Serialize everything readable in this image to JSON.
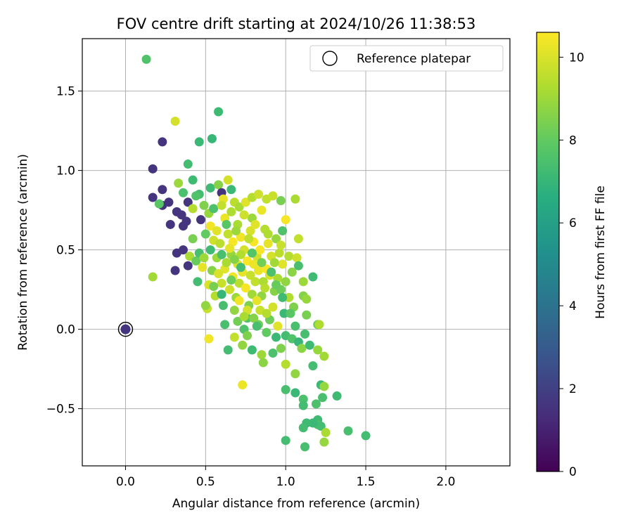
{
  "chart_data": {
    "type": "scatter",
    "title": "FOV centre drift starting at 2024/10/26 11:38:53",
    "xlabel": "Angular distance from reference (arcmin)",
    "ylabel": "Rotation from reference (arcmin)",
    "xlim": [
      -0.27,
      2.4
    ],
    "ylim": [
      -0.86,
      1.83
    ],
    "xticks": [
      0.0,
      0.5,
      1.0,
      1.5,
      2.0
    ],
    "xtick_labels": [
      "0.0",
      "0.5",
      "1.0",
      "1.5",
      "2.0"
    ],
    "yticks": [
      -0.5,
      0.0,
      0.5,
      1.0,
      1.5
    ],
    "ytick_labels": [
      "−0.5",
      "0.0",
      "0.5",
      "1.0",
      "1.5"
    ],
    "grid": true,
    "legend": {
      "placement": "top-right",
      "entries": [
        "Reference platepar"
      ]
    },
    "colorbar": {
      "label": "Hours from first FF file",
      "range": [
        0,
        10.6
      ],
      "ticks": [
        0,
        2,
        4,
        6,
        8,
        10
      ],
      "tick_labels": [
        "0",
        "2",
        "4",
        "6",
        "8",
        "10"
      ],
      "colormap": "viridis"
    },
    "reference_point": {
      "x": 0.0,
      "y": 0.0,
      "hours": 1.6
    },
    "points": [
      {
        "x": 0.13,
        "y": 1.7,
        "h": 7.6
      },
      {
        "x": 0.58,
        "y": 1.37,
        "h": 7.2
      },
      {
        "x": 0.54,
        "y": 1.2,
        "h": 7.0
      },
      {
        "x": 0.46,
        "y": 1.18,
        "h": 7.1
      },
      {
        "x": 0.31,
        "y": 1.31,
        "h": 9.9
      },
      {
        "x": 0.23,
        "y": 1.18,
        "h": 1.6
      },
      {
        "x": 0.17,
        "y": 1.01,
        "h": 1.6
      },
      {
        "x": 0.39,
        "y": 1.04,
        "h": 7.3
      },
      {
        "x": 0.17,
        "y": 0.83,
        "h": 1.6
      },
      {
        "x": 0.23,
        "y": 0.88,
        "h": 1.6
      },
      {
        "x": 0.23,
        "y": 0.78,
        "h": 1.6
      },
      {
        "x": 0.27,
        "y": 0.8,
        "h": 1.6
      },
      {
        "x": 0.21,
        "y": 0.79,
        "h": 7.8
      },
      {
        "x": 0.33,
        "y": 0.92,
        "h": 9.0
      },
      {
        "x": 0.42,
        "y": 0.94,
        "h": 7.2
      },
      {
        "x": 0.36,
        "y": 0.86,
        "h": 7.5
      },
      {
        "x": 0.46,
        "y": 0.85,
        "h": 7.3
      },
      {
        "x": 0.53,
        "y": 0.89,
        "h": 7.2
      },
      {
        "x": 0.58,
        "y": 0.91,
        "h": 8.6
      },
      {
        "x": 0.32,
        "y": 0.74,
        "h": 1.6
      },
      {
        "x": 0.35,
        "y": 0.72,
        "h": 1.6
      },
      {
        "x": 0.39,
        "y": 0.8,
        "h": 1.6
      },
      {
        "x": 0.38,
        "y": 0.68,
        "h": 1.6
      },
      {
        "x": 0.36,
        "y": 0.65,
        "h": 1.6
      },
      {
        "x": 0.28,
        "y": 0.66,
        "h": 1.6
      },
      {
        "x": 0.42,
        "y": 0.76,
        "h": 9.4
      },
      {
        "x": 0.44,
        "y": 0.84,
        "h": 7.6
      },
      {
        "x": 0.49,
        "y": 0.78,
        "h": 8.5
      },
      {
        "x": 0.47,
        "y": 0.69,
        "h": 1.6
      },
      {
        "x": 0.52,
        "y": 0.73,
        "h": 8.9
      },
      {
        "x": 0.6,
        "y": 0.86,
        "h": 1.6
      },
      {
        "x": 0.66,
        "y": 0.88,
        "h": 7.1
      },
      {
        "x": 0.64,
        "y": 0.94,
        "h": 9.9
      },
      {
        "x": 0.61,
        "y": 0.82,
        "h": 10.2
      },
      {
        "x": 0.68,
        "y": 0.8,
        "h": 9.5
      },
      {
        "x": 0.71,
        "y": 0.77,
        "h": 9.2
      },
      {
        "x": 0.75,
        "y": 0.8,
        "h": 10.1
      },
      {
        "x": 0.79,
        "y": 0.83,
        "h": 9.4
      },
      {
        "x": 0.83,
        "y": 0.85,
        "h": 9.8
      },
      {
        "x": 0.88,
        "y": 0.82,
        "h": 9.6
      },
      {
        "x": 0.92,
        "y": 0.84,
        "h": 9.7
      },
      {
        "x": 0.85,
        "y": 0.75,
        "h": 10.3
      },
      {
        "x": 0.79,
        "y": 0.7,
        "h": 9.0
      },
      {
        "x": 0.97,
        "y": 0.81,
        "h": 8.4
      },
      {
        "x": 1.06,
        "y": 0.82,
        "h": 9.2
      },
      {
        "x": 1.0,
        "y": 0.69,
        "h": 10.5
      },
      {
        "x": 0.98,
        "y": 0.62,
        "h": 7.6
      },
      {
        "x": 1.08,
        "y": 0.57,
        "h": 9.6
      },
      {
        "x": 0.32,
        "y": 0.48,
        "h": 1.6
      },
      {
        "x": 0.36,
        "y": 0.5,
        "h": 1.6
      },
      {
        "x": 0.31,
        "y": 0.37,
        "h": 1.6
      },
      {
        "x": 0.42,
        "y": 0.57,
        "h": 8.4
      },
      {
        "x": 0.4,
        "y": 0.46,
        "h": 9.2
      },
      {
        "x": 0.39,
        "y": 0.4,
        "h": 1.6
      },
      {
        "x": 0.44,
        "y": 0.43,
        "h": 8.1
      },
      {
        "x": 0.46,
        "y": 0.48,
        "h": 7.4
      },
      {
        "x": 0.48,
        "y": 0.39,
        "h": 10.2
      },
      {
        "x": 0.45,
        "y": 0.3,
        "h": 7.3
      },
      {
        "x": 0.17,
        "y": 0.33,
        "h": 9.1
      },
      {
        "x": 0.53,
        "y": 0.65,
        "h": 10.4
      },
      {
        "x": 0.55,
        "y": 0.56,
        "h": 9.8
      },
      {
        "x": 0.57,
        "y": 0.45,
        "h": 9.0
      },
      {
        "x": 0.54,
        "y": 0.37,
        "h": 8.6
      },
      {
        "x": 0.52,
        "y": 0.28,
        "h": 10.0
      },
      {
        "x": 0.56,
        "y": 0.21,
        "h": 9.4
      },
      {
        "x": 0.62,
        "y": 0.7,
        "h": 10.3
      },
      {
        "x": 0.64,
        "y": 0.6,
        "h": 9.6
      },
      {
        "x": 0.67,
        "y": 0.55,
        "h": 10.5
      },
      {
        "x": 0.66,
        "y": 0.47,
        "h": 8.9
      },
      {
        "x": 0.62,
        "y": 0.38,
        "h": 10.1
      },
      {
        "x": 0.6,
        "y": 0.29,
        "h": 9.7
      },
      {
        "x": 0.61,
        "y": 0.15,
        "h": 7.4
      },
      {
        "x": 0.7,
        "y": 0.66,
        "h": 9.2
      },
      {
        "x": 0.72,
        "y": 0.58,
        "h": 10.4
      },
      {
        "x": 0.74,
        "y": 0.5,
        "h": 9.9
      },
      {
        "x": 0.76,
        "y": 0.43,
        "h": 10.5
      },
      {
        "x": 0.73,
        "y": 0.36,
        "h": 10.2
      },
      {
        "x": 0.71,
        "y": 0.29,
        "h": 9.5
      },
      {
        "x": 0.69,
        "y": 0.2,
        "h": 9.0
      },
      {
        "x": 0.68,
        "y": 0.12,
        "h": 8.8
      },
      {
        "x": 0.78,
        "y": 0.62,
        "h": 10.0
      },
      {
        "x": 0.8,
        "y": 0.55,
        "h": 10.5
      },
      {
        "x": 0.82,
        "y": 0.46,
        "h": 9.8
      },
      {
        "x": 0.83,
        "y": 0.37,
        "h": 10.3
      },
      {
        "x": 0.81,
        "y": 0.3,
        "h": 9.6
      },
      {
        "x": 0.79,
        "y": 0.22,
        "h": 9.1
      },
      {
        "x": 0.77,
        "y": 0.15,
        "h": 8.5
      },
      {
        "x": 0.76,
        "y": 0.07,
        "h": 7.6
      },
      {
        "x": 0.87,
        "y": 0.63,
        "h": 9.4
      },
      {
        "x": 0.89,
        "y": 0.54,
        "h": 10.2
      },
      {
        "x": 0.91,
        "y": 0.46,
        "h": 9.9
      },
      {
        "x": 0.88,
        "y": 0.38,
        "h": 10.5
      },
      {
        "x": 0.86,
        "y": 0.3,
        "h": 9.3
      },
      {
        "x": 0.85,
        "y": 0.21,
        "h": 8.8
      },
      {
        "x": 0.84,
        "y": 0.12,
        "h": 9.7
      },
      {
        "x": 0.83,
        "y": 0.03,
        "h": 8.3
      },
      {
        "x": 0.94,
        "y": 0.57,
        "h": 8.9
      },
      {
        "x": 0.96,
        "y": 0.48,
        "h": 9.5
      },
      {
        "x": 0.98,
        "y": 0.41,
        "h": 10.1
      },
      {
        "x": 0.95,
        "y": 0.32,
        "h": 9.2
      },
      {
        "x": 0.93,
        "y": 0.24,
        "h": 8.6
      },
      {
        "x": 0.92,
        "y": 0.14,
        "h": 9.9
      },
      {
        "x": 0.9,
        "y": 0.06,
        "h": 8.2
      },
      {
        "x": 1.02,
        "y": 0.46,
        "h": 9.4
      },
      {
        "x": 1.04,
        "y": 0.36,
        "h": 8.7
      },
      {
        "x": 1.07,
        "y": 0.45,
        "h": 9.8
      },
      {
        "x": 1.08,
        "y": 0.4,
        "h": 7.4
      },
      {
        "x": 1.11,
        "y": 0.3,
        "h": 9.0
      },
      {
        "x": 1.17,
        "y": 0.33,
        "h": 7.2
      },
      {
        "x": 1.11,
        "y": 0.21,
        "h": 8.6
      },
      {
        "x": 1.13,
        "y": 0.19,
        "h": 8.9
      },
      {
        "x": 1.02,
        "y": 0.2,
        "h": 9.3
      },
      {
        "x": 1.05,
        "y": 0.14,
        "h": 8.5
      },
      {
        "x": 0.99,
        "y": 0.1,
        "h": 7.1
      },
      {
        "x": 1.13,
        "y": 0.09,
        "h": 8.4
      },
      {
        "x": 1.2,
        "y": 0.03,
        "h": 8.1
      },
      {
        "x": 1.21,
        "y": 0.03,
        "h": 9.3
      },
      {
        "x": 0.95,
        "y": 0.02,
        "h": 10.1
      },
      {
        "x": 1.0,
        "y": -0.04,
        "h": 7.3
      },
      {
        "x": 1.04,
        "y": -0.06,
        "h": 7.6
      },
      {
        "x": 1.08,
        "y": -0.08,
        "h": 7.0
      },
      {
        "x": 1.12,
        "y": -0.03,
        "h": 7.4
      },
      {
        "x": 1.1,
        "y": -0.12,
        "h": 8.7
      },
      {
        "x": 1.15,
        "y": -0.1,
        "h": 7.2
      },
      {
        "x": 1.2,
        "y": -0.13,
        "h": 8.9
      },
      {
        "x": 1.24,
        "y": -0.17,
        "h": 9.1
      },
      {
        "x": 1.17,
        "y": -0.23,
        "h": 7.3
      },
      {
        "x": 1.0,
        "y": -0.22,
        "h": 9.4
      },
      {
        "x": 1.06,
        "y": -0.28,
        "h": 8.8
      },
      {
        "x": 0.97,
        "y": -0.12,
        "h": 8.5
      },
      {
        "x": 0.92,
        "y": -0.15,
        "h": 7.5
      },
      {
        "x": 0.85,
        "y": -0.16,
        "h": 9.0
      },
      {
        "x": 0.86,
        "y": -0.21,
        "h": 8.7
      },
      {
        "x": 0.79,
        "y": -0.13,
        "h": 7.2
      },
      {
        "x": 0.73,
        "y": -0.1,
        "h": 8.8
      },
      {
        "x": 0.68,
        "y": -0.05,
        "h": 9.6
      },
      {
        "x": 0.64,
        "y": -0.13,
        "h": 7.3
      },
      {
        "x": 0.52,
        "y": -0.06,
        "h": 10.4
      },
      {
        "x": 0.51,
        "y": 0.13,
        "h": 9.7
      },
      {
        "x": 0.5,
        "y": 0.15,
        "h": 8.8
      },
      {
        "x": 0.62,
        "y": 0.03,
        "h": 7.4
      },
      {
        "x": 0.7,
        "y": 0.05,
        "h": 8.3
      },
      {
        "x": 0.74,
        "y": 0.0,
        "h": 7.6
      },
      {
        "x": 1.22,
        "y": -0.35,
        "h": 7.1
      },
      {
        "x": 1.24,
        "y": -0.36,
        "h": 8.9
      },
      {
        "x": 1.32,
        "y": -0.42,
        "h": 7.2
      },
      {
        "x": 1.23,
        "y": -0.43,
        "h": 7.4
      },
      {
        "x": 1.11,
        "y": -0.44,
        "h": 7.5
      },
      {
        "x": 1.11,
        "y": -0.48,
        "h": 7.3
      },
      {
        "x": 1.06,
        "y": -0.4,
        "h": 7.1
      },
      {
        "x": 1.0,
        "y": -0.38,
        "h": 7.4
      },
      {
        "x": 1.19,
        "y": -0.47,
        "h": 7.5
      },
      {
        "x": 1.2,
        "y": -0.57,
        "h": 7.2
      },
      {
        "x": 1.2,
        "y": -0.6,
        "h": 7.4
      },
      {
        "x": 1.22,
        "y": -0.61,
        "h": 7.3
      },
      {
        "x": 1.17,
        "y": -0.59,
        "h": 7.1
      },
      {
        "x": 1.13,
        "y": -0.59,
        "h": 7.2
      },
      {
        "x": 1.11,
        "y": -0.62,
        "h": 7.3
      },
      {
        "x": 1.25,
        "y": -0.65,
        "h": 9.2
      },
      {
        "x": 1.24,
        "y": -0.71,
        "h": 8.9
      },
      {
        "x": 1.39,
        "y": -0.64,
        "h": 7.4
      },
      {
        "x": 1.5,
        "y": -0.67,
        "h": 7.3
      },
      {
        "x": 1.0,
        "y": -0.7,
        "h": 7.3
      },
      {
        "x": 1.12,
        "y": -0.74,
        "h": 7.4
      },
      {
        "x": 0.73,
        "y": -0.35,
        "h": 10.3
      },
      {
        "x": 0.66,
        "y": 0.74,
        "h": 9.3
      },
      {
        "x": 0.74,
        "y": 0.72,
        "h": 9.8
      },
      {
        "x": 0.67,
        "y": 0.33,
        "h": 10.4
      },
      {
        "x": 0.7,
        "y": 0.41,
        "h": 10.0
      },
      {
        "x": 0.75,
        "y": 0.26,
        "h": 10.5
      },
      {
        "x": 0.78,
        "y": 0.34,
        "h": 9.7
      },
      {
        "x": 0.8,
        "y": 0.41,
        "h": 10.3
      },
      {
        "x": 0.72,
        "y": 0.47,
        "h": 9.4
      },
      {
        "x": 0.65,
        "y": 0.51,
        "h": 10.2
      },
      {
        "x": 0.59,
        "y": 0.54,
        "h": 9.5
      },
      {
        "x": 0.57,
        "y": 0.62,
        "h": 10.1
      },
      {
        "x": 0.63,
        "y": 0.42,
        "h": 9.2
      },
      {
        "x": 0.58,
        "y": 0.35,
        "h": 10.0
      },
      {
        "x": 0.65,
        "y": 0.25,
        "h": 9.8
      },
      {
        "x": 0.71,
        "y": 0.18,
        "h": 10.4
      },
      {
        "x": 0.76,
        "y": 0.12,
        "h": 9.9
      },
      {
        "x": 0.82,
        "y": 0.18,
        "h": 10.2
      },
      {
        "x": 0.87,
        "y": 0.26,
        "h": 9.5
      },
      {
        "x": 0.9,
        "y": 0.34,
        "h": 10.0
      },
      {
        "x": 0.93,
        "y": 0.42,
        "h": 9.1
      },
      {
        "x": 0.84,
        "y": 0.5,
        "h": 10.5
      },
      {
        "x": 0.77,
        "y": 0.57,
        "h": 9.6
      },
      {
        "x": 0.69,
        "y": 0.62,
        "h": 9.0
      },
      {
        "x": 0.81,
        "y": 0.66,
        "h": 10.1
      },
      {
        "x": 0.89,
        "y": 0.6,
        "h": 9.3
      },
      {
        "x": 0.97,
        "y": 0.53,
        "h": 9.7
      },
      {
        "x": 1.0,
        "y": 0.3,
        "h": 8.8
      },
      {
        "x": 0.97,
        "y": 0.25,
        "h": 8.2
      },
      {
        "x": 0.88,
        "y": 0.1,
        "h": 9.4
      },
      {
        "x": 0.8,
        "y": 0.07,
        "h": 8.6
      },
      {
        "x": 0.74,
        "y": 0.08,
        "h": 9.2
      },
      {
        "x": 0.55,
        "y": 0.76,
        "h": 7.5
      },
      {
        "x": 0.6,
        "y": 0.78,
        "h": 9.6
      },
      {
        "x": 0.63,
        "y": 0.66,
        "h": 7.8
      },
      {
        "x": 0.6,
        "y": 0.47,
        "h": 7.4
      },
      {
        "x": 0.5,
        "y": 0.6,
        "h": 8.0
      },
      {
        "x": 0.53,
        "y": 0.5,
        "h": 7.2
      },
      {
        "x": 0.49,
        "y": 0.45,
        "h": 9.0
      },
      {
        "x": 0.55,
        "y": 0.27,
        "h": 8.4
      },
      {
        "x": 0.6,
        "y": 0.22,
        "h": 7.0
      },
      {
        "x": 0.66,
        "y": 0.31,
        "h": 8.2
      },
      {
        "x": 0.72,
        "y": 0.39,
        "h": 7.3
      },
      {
        "x": 0.68,
        "y": 0.44,
        "h": 8.6
      },
      {
        "x": 0.79,
        "y": 0.48,
        "h": 7.7
      },
      {
        "x": 0.85,
        "y": 0.42,
        "h": 8.3
      },
      {
        "x": 0.91,
        "y": 0.36,
        "h": 7.5
      },
      {
        "x": 0.94,
        "y": 0.28,
        "h": 8.1
      },
      {
        "x": 0.98,
        "y": 0.2,
        "h": 7.2
      },
      {
        "x": 1.03,
        "y": 0.1,
        "h": 7.8
      },
      {
        "x": 1.06,
        "y": 0.02,
        "h": 7.4
      },
      {
        "x": 0.94,
        "y": -0.05,
        "h": 7.1
      },
      {
        "x": 0.88,
        "y": -0.02,
        "h": 8.0
      },
      {
        "x": 0.82,
        "y": 0.02,
        "h": 7.4
      },
      {
        "x": 0.76,
        "y": -0.04,
        "h": 8.5
      }
    ]
  }
}
